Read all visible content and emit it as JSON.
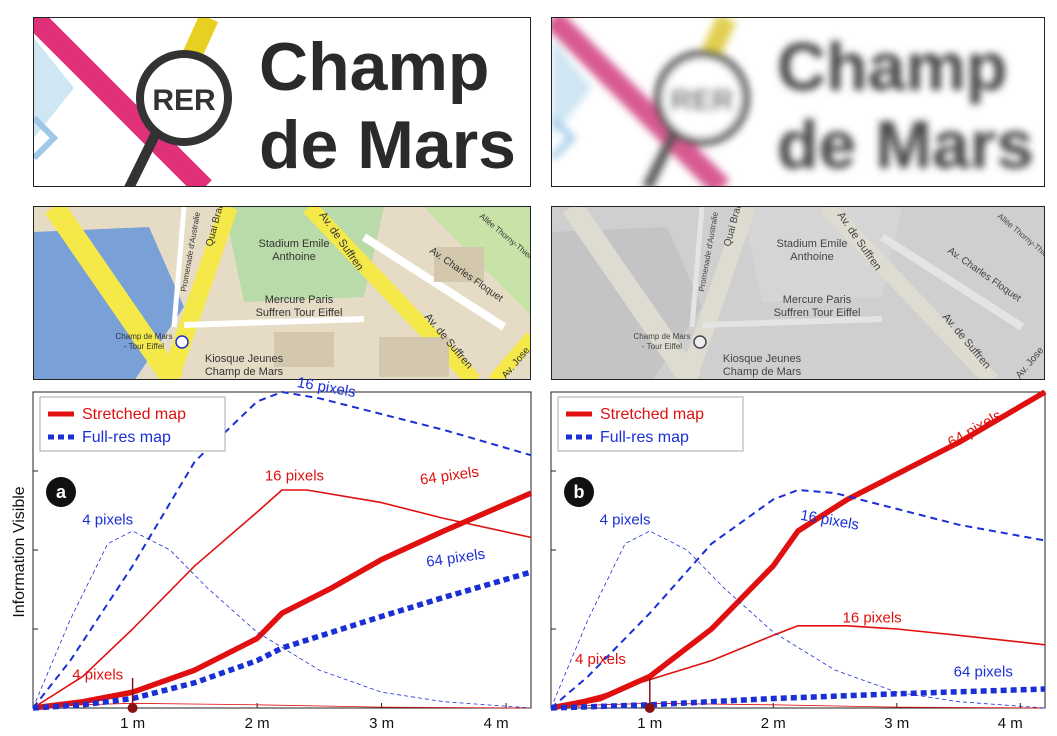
{
  "labels": {
    "rer": "RER",
    "champ_line1": "Champ",
    "champ_line2": "de Mars",
    "stadium1": "Stadium Emile",
    "stadium2": "Anthoine",
    "mercure1": "Mercure Paris",
    "mercure2": "Suffren Tour Eiffel",
    "kiosque1": "Kiosque Jeunes",
    "kiosque2": "Champ de Mars",
    "station1": "Champ de Mars",
    "station2": "- Tour Eiffel",
    "quai": "Quai Branly",
    "promenade": "Promenade d'Australie",
    "suffren_top": "Av. de Suffren",
    "suffren_low": "Av. de Suffren",
    "floquet": "Av. Charles Floquet",
    "thorny": "Allée Thorny-Thierry",
    "av_jose": "Av. Jose"
  },
  "colors": {
    "stretched": "#e01010",
    "full_res": "#1a2fd6",
    "marker": "#8b1010",
    "road_yellow": "#f5e94a",
    "water": "#7aa0d8",
    "park": "#b9dba9",
    "land": "#e6dcc6",
    "metro_pink": "#e0307a"
  },
  "chart_data": [
    {
      "type": "line",
      "panel": "a",
      "panel_label": "a",
      "ylabel": "Information Visible",
      "xticks": [
        "1 m",
        "2 m",
        "3 m",
        "4 m"
      ],
      "xlim": [
        0.2,
        4.2
      ],
      "ylim": [
        0,
        1
      ],
      "legend": {
        "placement": "top-left",
        "entries": [
          "Stretched map",
          "Full-res map"
        ]
      },
      "series": [
        {
          "name": "Stretched map",
          "label": "64 pixels",
          "style": "solid",
          "weight": "thick",
          "x": [
            0.2,
            0.6,
            1.0,
            1.5,
            2.0,
            2.2,
            2.6,
            3.0,
            3.5,
            4.2
          ],
          "y": [
            0.0,
            0.02,
            0.05,
            0.12,
            0.22,
            0.3,
            0.38,
            0.47,
            0.56,
            0.68
          ]
        },
        {
          "name": "Stretched map",
          "label": "16 pixels",
          "style": "solid",
          "weight": "thin",
          "x": [
            0.2,
            0.6,
            1.0,
            1.5,
            2.0,
            2.2,
            2.4,
            3.0,
            3.5,
            4.2
          ],
          "y": [
            0.0,
            0.1,
            0.25,
            0.45,
            0.62,
            0.69,
            0.69,
            0.65,
            0.6,
            0.54
          ]
        },
        {
          "name": "Stretched map",
          "label": "4 pixels",
          "style": "solid",
          "weight": "hairline",
          "x": [
            0.2,
            0.6,
            1.0,
            2.0,
            3.0,
            4.2
          ],
          "y": [
            0.0,
            0.01,
            0.015,
            0.01,
            0.003,
            0.0
          ]
        },
        {
          "name": "Full-res map",
          "label": "64 pixels",
          "style": "dotted",
          "weight": "thick",
          "x": [
            0.2,
            0.6,
            1.0,
            1.5,
            2.0,
            2.2,
            2.6,
            3.0,
            3.5,
            4.2
          ],
          "y": [
            0.0,
            0.01,
            0.03,
            0.08,
            0.15,
            0.19,
            0.24,
            0.29,
            0.35,
            0.43
          ]
        },
        {
          "name": "Full-res map",
          "label": "16 pixels",
          "style": "dashed",
          "weight": "medium",
          "x": [
            0.2,
            0.5,
            1.0,
            1.5,
            2.0,
            2.2,
            2.5,
            3.0,
            3.5,
            4.2
          ],
          "y": [
            0.0,
            0.15,
            0.45,
            0.78,
            0.97,
            1.0,
            0.98,
            0.93,
            0.88,
            0.8
          ]
        },
        {
          "name": "Full-res map",
          "label": "4 pixels",
          "style": "dashed",
          "weight": "hairline",
          "x": [
            0.2,
            0.5,
            0.8,
            1.0,
            1.3,
            1.6,
            2.0,
            2.5,
            3.0,
            3.5,
            4.2
          ],
          "y": [
            0.0,
            0.28,
            0.52,
            0.56,
            0.5,
            0.38,
            0.24,
            0.12,
            0.05,
            0.02,
            0.0
          ]
        }
      ],
      "marker": {
        "x": 1.0,
        "y": 0.0,
        "label": "4 pixels"
      }
    },
    {
      "type": "line",
      "panel": "b",
      "panel_label": "b",
      "ylabel": "",
      "xticks": [
        "1 m",
        "2 m",
        "3 m",
        "4 m"
      ],
      "xlim": [
        0.2,
        4.2
      ],
      "ylim": [
        0,
        1
      ],
      "legend": {
        "placement": "top-left",
        "entries": [
          "Stretched map",
          "Full-res map"
        ]
      },
      "series": [
        {
          "name": "Stretched map",
          "label": "64 pixels",
          "style": "solid",
          "weight": "thick",
          "x": [
            0.2,
            0.6,
            1.0,
            1.5,
            2.0,
            2.2,
            2.6,
            3.0,
            3.5,
            4.2
          ],
          "y": [
            0.0,
            0.03,
            0.1,
            0.25,
            0.45,
            0.56,
            0.66,
            0.74,
            0.84,
            1.0
          ]
        },
        {
          "name": "Stretched map",
          "label": "16 pixels",
          "style": "solid",
          "weight": "thin",
          "x": [
            0.2,
            0.6,
            1.0,
            1.5,
            2.0,
            2.2,
            2.6,
            3.0,
            3.5,
            4.2
          ],
          "y": [
            0.0,
            0.04,
            0.09,
            0.15,
            0.23,
            0.26,
            0.26,
            0.25,
            0.23,
            0.2
          ]
        },
        {
          "name": "Stretched map",
          "label": "4 pixels",
          "style": "solid",
          "weight": "hairline",
          "x": [
            0.2,
            0.6,
            1.0,
            2.0,
            3.0,
            4.2
          ],
          "y": [
            0.0,
            0.01,
            0.015,
            0.01,
            0.003,
            0.0
          ]
        },
        {
          "name": "Full-res map",
          "label": "64 pixels",
          "style": "dotted",
          "weight": "thick",
          "x": [
            0.2,
            1.0,
            2.0,
            3.0,
            4.2
          ],
          "y": [
            0.0,
            0.01,
            0.03,
            0.045,
            0.06
          ]
        },
        {
          "name": "Full-res map",
          "label": "16 pixels",
          "style": "dashed",
          "weight": "medium",
          "x": [
            0.2,
            0.5,
            1.0,
            1.5,
            2.0,
            2.2,
            2.5,
            3.0,
            3.5,
            4.2
          ],
          "y": [
            0.0,
            0.1,
            0.3,
            0.52,
            0.66,
            0.69,
            0.68,
            0.63,
            0.58,
            0.53
          ]
        },
        {
          "name": "Full-res map",
          "label": "4 pixels",
          "style": "dashed",
          "weight": "hairline",
          "x": [
            0.2,
            0.5,
            0.8,
            1.0,
            1.3,
            1.6,
            2.0,
            2.5,
            3.0,
            3.5,
            4.2
          ],
          "y": [
            0.0,
            0.28,
            0.52,
            0.56,
            0.5,
            0.38,
            0.24,
            0.12,
            0.05,
            0.02,
            0.0
          ]
        }
      ],
      "marker": {
        "x": 1.0,
        "y": 0.0,
        "label": "4 pixels"
      }
    }
  ]
}
